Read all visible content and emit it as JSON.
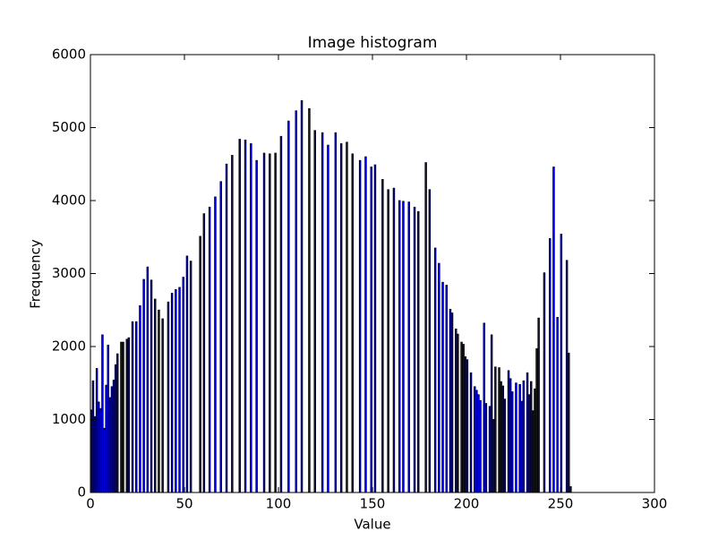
{
  "chart_data": {
    "type": "bar",
    "title": "Image histogram",
    "x_label": "Value",
    "y_label": "Frequency",
    "x": [
      0,
      1,
      2,
      3,
      4,
      5,
      6,
      7,
      8,
      9,
      10,
      11,
      12,
      13,
      14,
      16,
      17,
      19,
      20,
      22,
      24,
      26,
      28,
      30,
      32,
      34,
      36,
      38,
      41,
      43,
      45,
      47,
      49,
      51,
      53,
      58,
      60,
      63,
      66,
      69,
      72,
      75,
      79,
      82,
      85,
      88,
      92,
      95,
      98,
      101,
      105,
      109,
      112,
      116,
      119,
      123,
      126,
      130,
      133,
      136,
      139,
      143,
      146,
      149,
      151,
      155,
      158,
      161,
      164,
      166,
      169,
      172,
      174,
      178,
      180,
      183,
      185,
      187,
      189,
      191,
      192,
      194,
      195,
      197,
      198,
      199,
      200,
      202,
      204,
      205,
      206,
      207,
      209,
      210,
      212,
      213,
      214,
      215,
      217,
      218,
      219,
      220,
      222,
      223,
      224,
      226,
      228,
      229,
      230,
      232,
      233,
      234,
      235,
      236,
      237,
      238,
      241,
      244,
      246,
      248,
      250,
      253,
      254,
      255
    ],
    "values": [
      1130,
      1530,
      1040,
      1700,
      1240,
      1150,
      2160,
      880,
      1470,
      2020,
      1300,
      1450,
      1540,
      1750,
      1900,
      2060,
      2060,
      2100,
      2120,
      2340,
      2340,
      2560,
      2920,
      3090,
      2910,
      2650,
      2500,
      2380,
      2610,
      2730,
      2780,
      2810,
      2950,
      3240,
      3170,
      3510,
      3820,
      3910,
      4050,
      4260,
      4500,
      4620,
      4840,
      4830,
      4780,
      4550,
      4650,
      4640,
      4650,
      4880,
      5090,
      5230,
      5370,
      5260,
      4960,
      4930,
      4760,
      4930,
      4780,
      4800,
      4640,
      4550,
      4600,
      4460,
      4490,
      4290,
      4150,
      4170,
      4000,
      3990,
      3980,
      3910,
      3850,
      4520,
      4150,
      3350,
      3140,
      2880,
      2840,
      2510,
      2460,
      2240,
      2170,
      2060,
      2030,
      1860,
      1820,
      1640,
      1450,
      1400,
      1340,
      1260,
      2320,
      1220,
      1180,
      2160,
      1000,
      1720,
      1710,
      1520,
      1460,
      1280,
      1670,
      1560,
      1380,
      1500,
      1480,
      1250,
      1530,
      1640,
      1340,
      1520,
      1120,
      1420,
      1970,
      2390,
      3010,
      3480,
      4460,
      2400,
      3540,
      3180,
      1910,
      80
    ],
    "color": "#0000ff",
    "xlim": [
      0,
      300
    ],
    "xticks": [
      0,
      50,
      100,
      150,
      200,
      250,
      300
    ],
    "ylim": [
      0,
      6000
    ],
    "yticks": [
      0,
      1000,
      2000,
      3000,
      4000,
      5000,
      6000
    ]
  }
}
